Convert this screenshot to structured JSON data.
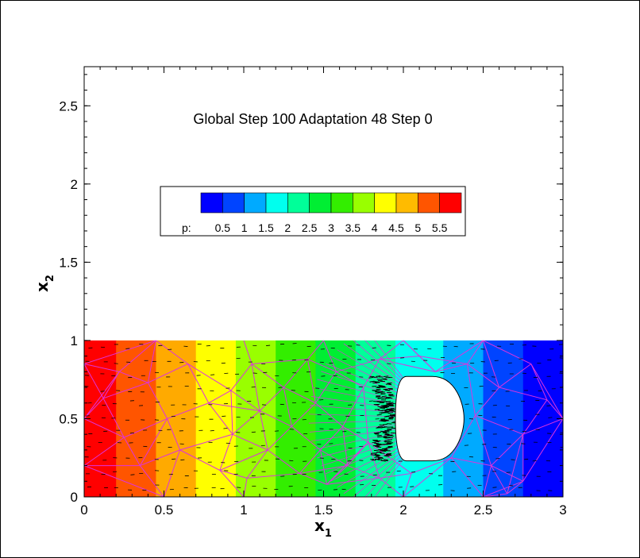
{
  "chart_data": {
    "type": "heatmap",
    "title": "Global Step 100  Adaptation 48 Step 0",
    "xlabel": "x",
    "xlabel_sub": "1",
    "ylabel": "x",
    "ylabel_sub": "2",
    "xlim": [
      0,
      3
    ],
    "ylim": [
      0,
      2.75
    ],
    "x_ticks": [
      0,
      0.5,
      1,
      1.5,
      2,
      2.5,
      3
    ],
    "x_tick_labels": [
      "0",
      "0.5",
      "1",
      "1.5",
      "2",
      "2.5",
      "3"
    ],
    "y_ticks": [
      0,
      0.5,
      1,
      1.5,
      2,
      2.5
    ],
    "y_tick_labels": [
      "0",
      "0.5",
      "1",
      "1.5",
      "2",
      "2.5"
    ],
    "domain_height": 1,
    "legend": {
      "variable": "p:",
      "levels": [
        "0.5",
        "1",
        "1.5",
        "2",
        "2.5",
        "3",
        "3.5",
        "4",
        "4.5",
        "5",
        "5.5"
      ],
      "colors": [
        "#0000ff",
        "#0044ff",
        "#00aaff",
        "#00ffee",
        "#00ff99",
        "#00ee33",
        "#33ee00",
        "#99ff00",
        "#ffff00",
        "#ffbb00",
        "#ff5500",
        "#ff0000"
      ]
    },
    "bands": [
      {
        "x0": 0.0,
        "x1": 0.2,
        "color": "#ff0000"
      },
      {
        "x0": 0.2,
        "x1": 0.45,
        "color": "#ff5500"
      },
      {
        "x0": 0.45,
        "x1": 0.7,
        "color": "#ffaa00"
      },
      {
        "x0": 0.7,
        "x1": 0.95,
        "color": "#ffff00"
      },
      {
        "x0": 0.95,
        "x1": 1.2,
        "color": "#99ff00"
      },
      {
        "x0": 1.2,
        "x1": 1.45,
        "color": "#33ee00"
      },
      {
        "x0": 1.45,
        "x1": 1.7,
        "color": "#00ee33"
      },
      {
        "x0": 1.7,
        "x1": 1.95,
        "color": "#00ff99"
      },
      {
        "x0": 1.95,
        "x1": 2.25,
        "color": "#00ffee"
      },
      {
        "x0": 2.25,
        "x1": 2.5,
        "color": "#00aaff"
      },
      {
        "x0": 2.5,
        "x1": 2.75,
        "color": "#0044ff"
      },
      {
        "x0": 2.75,
        "x1": 3.0,
        "color": "#0000ff"
      }
    ],
    "obstacle": {
      "x_left": 1.95,
      "x_right": 2.38,
      "y_center": 0.5,
      "half_height": 0.27
    },
    "mesh_color": "#dd33dd",
    "mesh_nodes": [
      [
        0.22,
        0.8
      ],
      [
        0.52,
        0.5
      ],
      [
        0.25,
        0.38
      ],
      [
        0.35,
        0.2
      ],
      [
        0.12,
        0.63
      ],
      [
        0.4,
        0.73
      ],
      [
        0.65,
        0.85
      ],
      [
        0.6,
        0.3
      ],
      [
        0.78,
        0.6
      ],
      [
        0.85,
        0.17
      ],
      [
        0.92,
        0.68
      ],
      [
        0.93,
        0.4
      ],
      [
        1.05,
        0.85
      ],
      [
        1.1,
        0.55
      ],
      [
        1.15,
        0.3
      ],
      [
        1.02,
        0.12
      ],
      [
        1.25,
        0.7
      ],
      [
        1.3,
        0.45
      ],
      [
        1.35,
        0.15
      ],
      [
        1.4,
        0.88
      ],
      [
        1.45,
        0.6
      ],
      [
        1.48,
        0.3
      ],
      [
        1.52,
        0.08
      ],
      [
        1.58,
        0.8
      ],
      [
        1.62,
        0.45
      ],
      [
        1.65,
        0.2
      ],
      [
        1.75,
        0.7
      ],
      [
        1.78,
        0.35
      ],
      [
        1.85,
        0.88
      ],
      [
        1.85,
        0.12
      ],
      [
        2.1,
        0.9
      ],
      [
        2.2,
        0.8
      ],
      [
        2.05,
        0.15
      ],
      [
        2.3,
        0.25
      ],
      [
        2.45,
        0.52
      ],
      [
        2.4,
        0.85
      ],
      [
        2.55,
        0.2
      ],
      [
        2.6,
        0.7
      ],
      [
        2.65,
        0.02
      ],
      [
        2.75,
        0.4
      ],
      [
        2.8,
        0.85
      ],
      [
        2.9,
        0.62
      ],
      [
        3.0,
        0.5
      ],
      [
        2.75,
        0.1
      ],
      [
        0.0,
        0.5
      ],
      [
        0.0,
        0.2
      ],
      [
        0.0,
        0.85
      ],
      [
        0.45,
        1.0
      ],
      [
        1.0,
        1.0
      ],
      [
        1.5,
        1.0
      ],
      [
        2.0,
        1.0
      ],
      [
        2.5,
        1.0
      ],
      [
        0.5,
        0.0
      ],
      [
        1.0,
        0.0
      ],
      [
        2.0,
        0.0
      ],
      [
        2.5,
        0.0
      ]
    ]
  }
}
